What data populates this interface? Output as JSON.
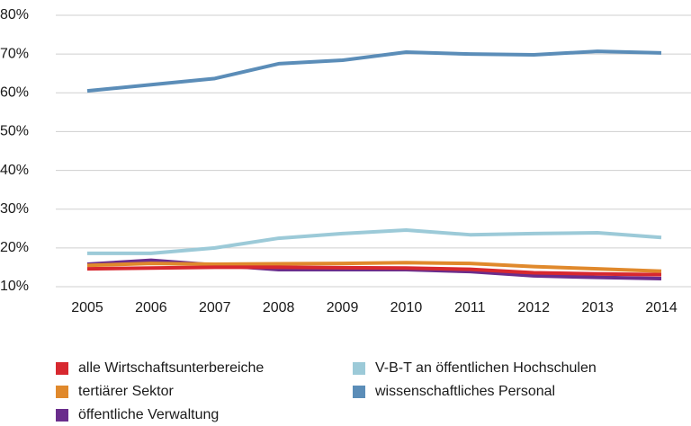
{
  "chart_data": {
    "type": "line",
    "categories": [
      "2005",
      "2006",
      "2007",
      "2008",
      "2009",
      "2010",
      "2011",
      "2012",
      "2013",
      "2014"
    ],
    "series": [
      {
        "name": "alle Wirtschaftsunterbereiche",
        "color": "#d7282f",
        "values": [
          14.6,
          14.8,
          15.0,
          15.0,
          14.9,
          14.8,
          14.5,
          13.6,
          13.3,
          13.1
        ]
      },
      {
        "name": "tertiärer Sektor",
        "color": "#e0892c",
        "values": [
          15.5,
          16.0,
          15.8,
          15.9,
          16.0,
          16.2,
          16.0,
          15.2,
          14.6,
          14.0
        ]
      },
      {
        "name": "öffentliche Verwaltung",
        "color": "#6a2d8c",
        "values": [
          15.8,
          16.8,
          15.6,
          14.4,
          14.4,
          14.4,
          13.9,
          12.8,
          12.4,
          12.1
        ]
      },
      {
        "name": "V-B-T an öffentlichen Hochschulen",
        "color": "#9ccad8",
        "values": [
          18.6,
          18.6,
          20.0,
          22.5,
          23.7,
          24.6,
          23.4,
          23.7,
          23.9,
          22.7
        ]
      },
      {
        "name": "wissenschaftliches Personal",
        "color": "#5b8db8",
        "values": [
          60.5,
          62.1,
          63.7,
          67.5,
          68.4,
          70.5,
          70.0,
          69.8,
          70.7,
          70.3
        ]
      }
    ],
    "ylim": [
      10,
      80
    ],
    "yticks": [
      {
        "value": 10,
        "label": "10%"
      },
      {
        "value": 20,
        "label": "20%"
      },
      {
        "value": 30,
        "label": "30%"
      },
      {
        "value": 40,
        "label": "40%"
      },
      {
        "value": 50,
        "label": "50%"
      },
      {
        "value": 60,
        "label": "60%"
      },
      {
        "value": 70,
        "label": "70%"
      },
      {
        "value": 80,
        "label": "80%"
      }
    ],
    "grid": true
  }
}
